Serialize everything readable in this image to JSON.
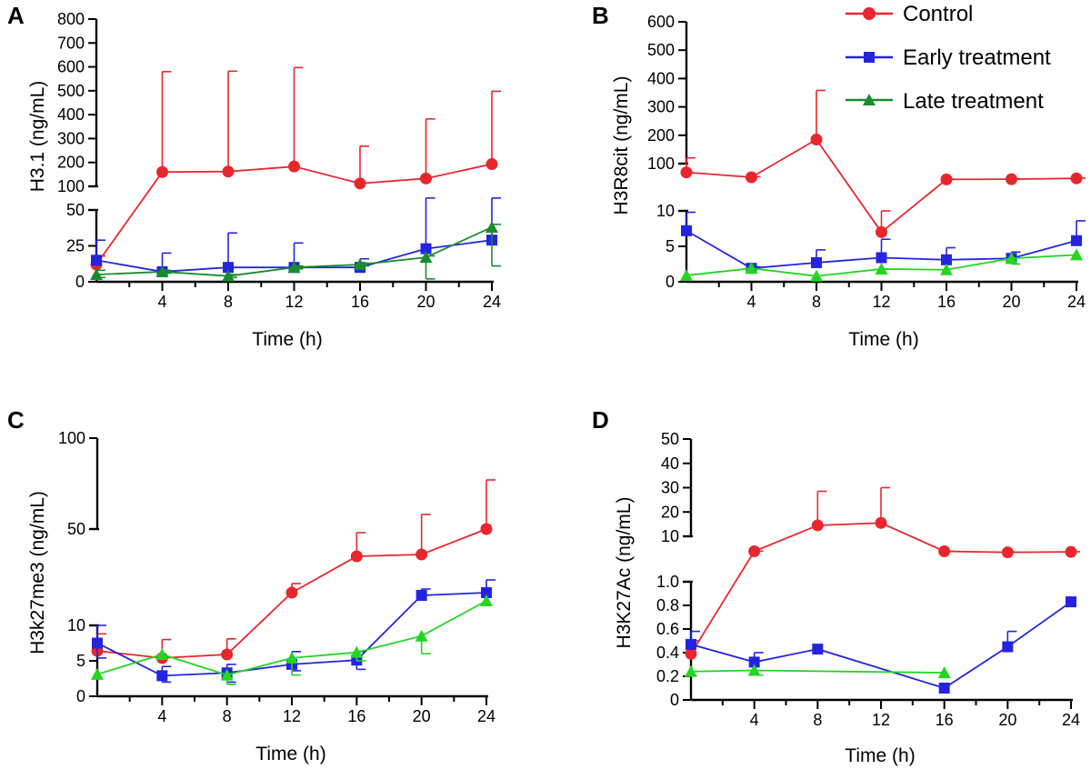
{
  "legend": [
    {
      "label": "Control",
      "color": "#e8262d",
      "marker": "circle"
    },
    {
      "label": "Early treatment",
      "color": "#2424e0",
      "marker": "square"
    },
    {
      "label": "Late treatment",
      "color": "#1a8c2e",
      "marker": "triangle"
    }
  ],
  "chart_data": [
    {
      "panel": "A",
      "type": "line",
      "xlabel": "Time (h)",
      "ylabel": "H3.1 (ng/mL)",
      "x_ticks": [
        4,
        8,
        12,
        16,
        20,
        24
      ],
      "x": [
        0,
        4,
        8,
        12,
        16,
        20,
        24
      ],
      "axis_break": true,
      "y_lower_ticks": [
        0,
        25,
        50
      ],
      "y_upper_ticks": [
        100,
        200,
        300,
        400,
        500,
        600,
        700,
        800
      ],
      "series": [
        {
          "name": "Control",
          "color": "#e8262d",
          "marker": "circle",
          "values": [
            12,
            160,
            162,
            183,
            112,
            133,
            193
          ],
          "err_upper": [
            18,
            580,
            582,
            597,
            268,
            382,
            498
          ]
        },
        {
          "name": "Early treatment",
          "color": "#2424e0",
          "marker": "square",
          "values": [
            15,
            7,
            10,
            10,
            10,
            23,
            29
          ],
          "err_upper": [
            29,
            20,
            34,
            27,
            16,
            51,
            51
          ]
        },
        {
          "name": "Late treatment",
          "color": "#1a8c2e",
          "marker": "triangle",
          "values": [
            5,
            7,
            4,
            10,
            12,
            17,
            38
          ],
          "err_upper": [
            8,
            8,
            5,
            11,
            13,
            18,
            40
          ],
          "err_lower": [
            3,
            6,
            3,
            9,
            11,
            2,
            11
          ]
        }
      ]
    },
    {
      "panel": "B",
      "type": "line",
      "xlabel": "Time (h)",
      "ylabel": "H3R8cit (ng/mL)",
      "x_ticks": [
        4,
        8,
        12,
        16,
        20,
        24
      ],
      "x": [
        0,
        4,
        8,
        12,
        16,
        20,
        24
      ],
      "axis_break": true,
      "y_lower_ticks": [
        0,
        5,
        10
      ],
      "y_upper_ticks": [
        100,
        200,
        300,
        400,
        500,
        600
      ],
      "series": [
        {
          "name": "Control",
          "color": "#e8262d",
          "marker": "circle",
          "values": [
            68,
            50,
            185,
            7,
            42,
            43,
            46
          ],
          "err_upper": [
            120,
            52,
            358,
            10,
            43,
            44,
            47
          ]
        },
        {
          "name": "Early treatment",
          "color": "#2424e0",
          "marker": "square",
          "values": [
            7.2,
            1.9,
            2.7,
            3.4,
            3.1,
            3.3,
            5.8
          ],
          "err_upper": [
            9.8,
            2.1,
            4.5,
            6.0,
            4.8,
            4.2,
            8.6
          ]
        },
        {
          "name": "Late treatment",
          "color": "#22d622",
          "marker": "triangle",
          "values": [
            0.9,
            1.9,
            0.8,
            1.8,
            1.7,
            3.3,
            3.8
          ],
          "err_lower": [
            0.9,
            1.9,
            0.8,
            1.8,
            1.7,
            2.5,
            3.8
          ]
        }
      ]
    },
    {
      "panel": "C",
      "type": "line",
      "xlabel": "Time (h)",
      "ylabel": "H3k27me3 (ng/mL)",
      "x_ticks": [
        4,
        8,
        12,
        16,
        20,
        24
      ],
      "x": [
        0,
        4,
        8,
        12,
        16,
        20,
        24
      ],
      "axis_break": true,
      "y_lower_ticks": [
        0,
        5,
        10
      ],
      "y_upper_ticks": [
        50,
        100
      ],
      "series": [
        {
          "name": "Control",
          "color": "#e8262d",
          "marker": "circle",
          "values": [
            6.4,
            5.4,
            5.9,
            15,
            35,
            36,
            50
          ],
          "err_upper": [
            8.8,
            8,
            8.1,
            20,
            48,
            58,
            77
          ]
        },
        {
          "name": "Early treatment",
          "color": "#2424e0",
          "marker": "square",
          "values": [
            7.5,
            2.9,
            3.3,
            4.5,
            5.1,
            13.5,
            15
          ],
          "err_upper": [
            10,
            4.2,
            4.5,
            6.3,
            6.3,
            17,
            22
          ],
          "err_lower": [
            5.4,
            2,
            2,
            3.6,
            3.8,
            13.5,
            15
          ]
        },
        {
          "name": "Late treatment",
          "color": "#22d622",
          "marker": "triangle",
          "values": [
            3.1,
            5.9,
            3.0,
            5.4,
            6.2,
            8.5,
            10.5
          ],
          "err_lower": [
            3.1,
            5.9,
            1.7,
            3.0,
            5.0,
            6.0,
            10.5
          ]
        }
      ]
    },
    {
      "panel": "D",
      "type": "line",
      "xlabel": "Time (h)",
      "ylabel": "H3K27Ac (ng/mL)",
      "x_ticks": [
        4,
        8,
        12,
        16,
        20,
        24
      ],
      "x": [
        0,
        4,
        8,
        12,
        16,
        20,
        24
      ],
      "axis_break": true,
      "y_lower_ticks": [
        "0",
        "0.2",
        "0.4",
        "0.6",
        "0.8",
        "1.0"
      ],
      "y_upper_ticks": [
        10,
        20,
        30,
        40,
        50
      ],
      "series": [
        {
          "name": "Control",
          "color": "#e8262d",
          "marker": "circle",
          "values": [
            0.39,
            2.5,
            14.5,
            15.5,
            2.5,
            2,
            2.2
          ],
          "err_upper": [
            0.5,
            2.6,
            28.5,
            30,
            2.6,
            2.1,
            2.3
          ]
        },
        {
          "name": "Early treatment",
          "color": "#2424e0",
          "marker": "square",
          "values": [
            0.47,
            0.32,
            0.43,
            null,
            0.1,
            0.45,
            0.83
          ],
          "err_upper": [
            0.58,
            0.4,
            0.43,
            null,
            0.1,
            0.58,
            0.83
          ]
        },
        {
          "name": "Late treatment",
          "color": "#22d622",
          "marker": "triangle",
          "values": [
            0.24,
            0.25,
            null,
            null,
            0.23,
            null,
            null
          ],
          "err_lower": [
            0.24,
            0.21,
            null,
            null,
            0.23,
            null,
            null
          ]
        }
      ]
    }
  ]
}
